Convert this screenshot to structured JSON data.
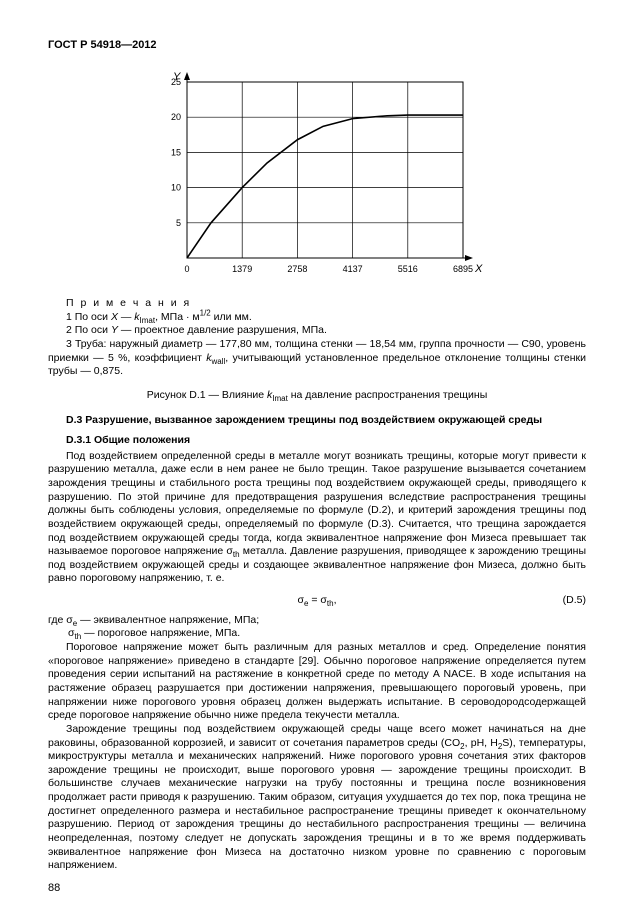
{
  "header": "ГОСТ Р 54918—2012",
  "pagenum": "88",
  "chart": {
    "type": "line",
    "x_label": "X",
    "y_label": "Y",
    "xlim": [
      0,
      6895
    ],
    "ylim": [
      0,
      25
    ],
    "xticks": [
      0,
      1379,
      2758,
      4137,
      5516,
      6895
    ],
    "yticks": [
      0,
      5,
      10,
      15,
      20,
      25
    ],
    "grid_color": "#000000",
    "line_color": "#000000",
    "line_width": 1.6,
    "background": "#ffffff",
    "tick_fontsize": 9,
    "label_fontsize": 11,
    "points": [
      {
        "x": 0,
        "y": 0
      },
      {
        "x": 600,
        "y": 5
      },
      {
        "x": 1379,
        "y": 10
      },
      {
        "x": 2000,
        "y": 13.5
      },
      {
        "x": 2758,
        "y": 16.8
      },
      {
        "x": 3400,
        "y": 18.7
      },
      {
        "x": 4137,
        "y": 19.8
      },
      {
        "x": 5000,
        "y": 20.2
      },
      {
        "x": 5516,
        "y": 20.3
      },
      {
        "x": 6895,
        "y": 20.3
      }
    ]
  },
  "notes_heading": "П р и м е ч а н и я",
  "note1_pre": "1 По оси ",
  "note1_var": "X — k",
  "note1_sub": "Imat",
  "note1_post": ", МПа · м",
  "note1_sup": "1/2",
  "note1_end": " или мм.",
  "note2_pre": "2 По оси ",
  "note2_var": "Y",
  "note2_post": " — проектное давление разрушения, МПа.",
  "note3_pre": "3 Труба: наружный диаметр — 177,80 мм, толщина стенки — 18,54 мм, группа прочности — C90, уровень приемки — 5 %, коэффициент ",
  "note3_var": "k",
  "note3_sub": "wall",
  "note3_post": ", учитывающий установленное предельное отклонение толщины стенки трубы — 0,875.",
  "fig_caption_pre": "Рисунок D.1 — Влияние ",
  "fig_caption_var": "k",
  "fig_caption_sub": "Imat",
  "fig_caption_post": "  на давление распространения трещины",
  "sec_d3": "D.3 Разрушение, вызванное зарождением трещины под воздействием окружающей среды",
  "sec_d31": "D.3.1 Общие положения",
  "para1_pre": "Под воздействием определенной среды в металле могут возникать трещины, которые могут привести к разрушению металла, даже если в нем ранее не было трещин. Такое разрушение вызывается сочетанием зарождения трещины и стабильного роста трещины под воздействием окружающей среды, приводящего к  разрушению. По этой причине для предотвращения разрушения вследствие распространения трещины должны быть соблюдены условия, определяемые по формуле (D.2), и критерий зарождения трещины под воздействием окружающей среды, определяемый по формуле (D.3). Считается, что трещина зарождается под воздействием окружающей среды тогда, когда эквивалентное напряжение фон Мизеса превышает так называемое пороговое напряжение σ",
  "para1_sub": "th",
  "para1_post": " металла. Давление разрушения, приводящее к зарождению трещины под воздействием окружающей среды и создающее эквивалентное напряжение фон Мизеса, должно быть равно пороговому напряжению, т. е.",
  "eq_lhs": "σ",
  "eq_lhs_sub": "e",
  "eq_mid": " = σ",
  "eq_rhs_sub": "th",
  "eq_end": ",",
  "eq_num": "(D.5)",
  "where_pre": "где σ",
  "where1_sub": "e",
  "where1_post": "  — эквивалентное напряжение, МПа;",
  "where2_pre": "σ",
  "where2_sub": "th",
  "where2_post": " — пороговое напряжение, МПа.",
  "para2": "Пороговое напряжение может быть различным для разных металлов и сред. Определение понятия «пороговое напряжение» приведено в стандарте [29]. Обычно пороговое напряжение определяется путем проведения серии испытаний на растяжение в конкретной среде по методу A NACE. В ходе  испытания на растяжение образец разрушается при достижении напряжения, превышающего пороговый уровень, при напряжении ниже порогового уровня образец должен выдержать испытание. В сероводородсодержащей среде пороговое напряжение обычно ниже предела текучести металла.",
  "para3_pre": "Зарождение трещины под воздействием окружающей среды чаще всего может начинаться на дне раковины, образованной коррозией, и зависит от сочетания параметров среды (CO",
  "para3_sub1": "2",
  "para3_mid": ", pH, H",
  "para3_sub2": "2",
  "para3_post": "S), температуры, микроструктуры металла и механических напряжений. Ниже порогового уровня сочетания этих факторов зарождение трещины не происходит, выше порогового уровня — зарождение трещины происходит. В большинстве случаев механические нагрузки на трубу постоянны и трещина после возникновения продолжает расти приводя к разрушению. Таким образом, ситуация ухудшается до тех пор, пока трещина не достигнет определенного размера и нестабильное распространение трещины приведет к окончательному разрушению. Период от зарождения трещины до нестабильного распространения трещины — величина неопределенная, поэтому следует не допускать зарождения трещины и в то же время поддерживать эквивалентное напряжение фон Мизеса на достаточно низком уровне по сравнению с пороговым напряжением."
}
